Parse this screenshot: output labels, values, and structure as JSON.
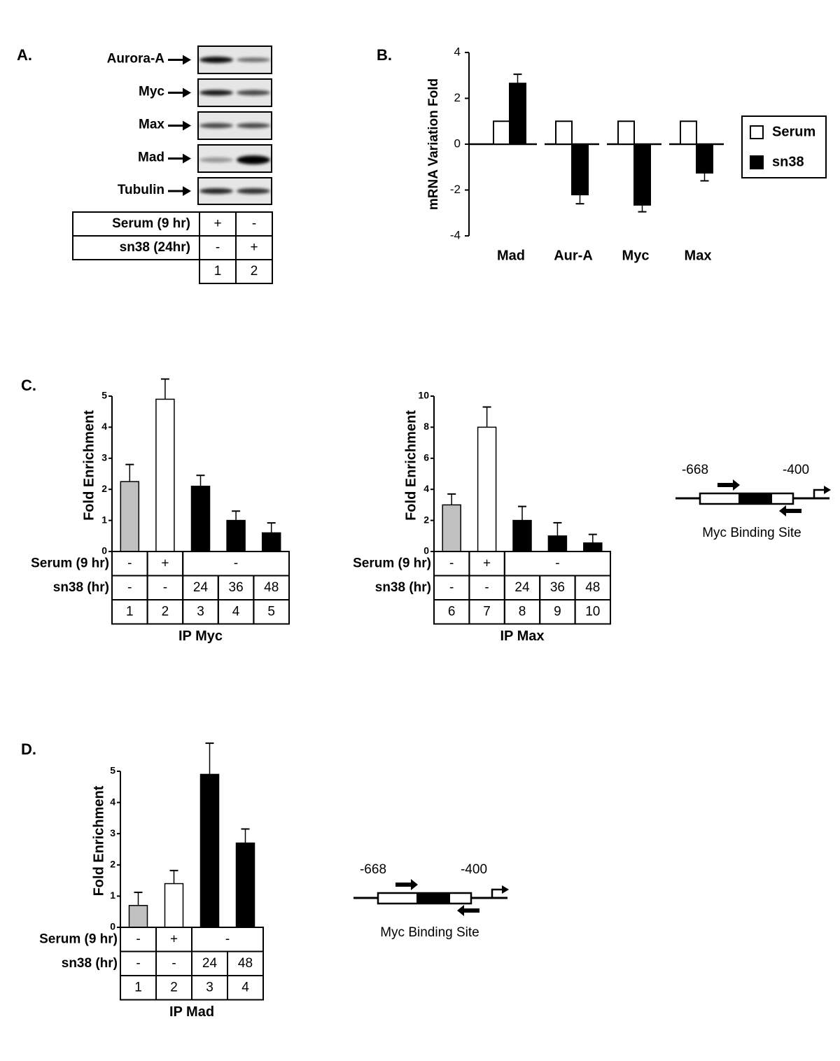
{
  "panel_labels": [
    "A.",
    "B.",
    "C.",
    "D."
  ],
  "blot": {
    "proteins": [
      "Aurora-A",
      "Myc",
      "Max",
      "Mad",
      "Tubulin"
    ],
    "table": {
      "rows": [
        {
          "label": "Serum (9 hr)",
          "cells": [
            "+",
            "-"
          ]
        },
        {
          "label": "sn38 (24hr)",
          "cells": [
            "-",
            "+"
          ]
        }
      ],
      "lanes": [
        "1",
        "2"
      ]
    }
  },
  "chart_data": [
    {
      "type": "bar",
      "ylabel": "mRNA Variation Fold",
      "categories": [
        "Mad",
        "Aur-A",
        "Myc",
        "Max"
      ],
      "series": [
        {
          "name": "Serum",
          "color": "#ffffff",
          "values": [
            1,
            1,
            1,
            1
          ]
        },
        {
          "name": "sn38",
          "color": "#000000",
          "values": [
            2.65,
            -2.2,
            -2.65,
            -1.25
          ],
          "errors": [
            0.4,
            0.4,
            0.3,
            0.35
          ]
        }
      ],
      "ylim": [
        -4,
        4
      ],
      "yticks": [
        -4,
        -2,
        0,
        2,
        4
      ],
      "legend": "right"
    },
    {
      "type": "bar",
      "ylabel": "Fold Enrichment",
      "values": [
        2.25,
        4.9,
        2.1,
        1.0,
        0.6
      ],
      "errors": [
        0.55,
        0.65,
        0.35,
        0.3,
        0.32
      ],
      "colors": [
        "#c0c0c0",
        "#ffffff",
        "#000000",
        "#000000",
        "#000000"
      ],
      "ylim": [
        0,
        5
      ],
      "yticks": [
        0,
        1,
        2,
        3,
        4,
        5
      ],
      "table": {
        "rows": [
          {
            "label": "Serum (9 hr)",
            "cells": [
              "-",
              "+",
              "-"
            ]
          },
          {
            "label": "sn38 (hr)",
            "cells": [
              "-",
              "-",
              "24",
              "36",
              "48"
            ]
          }
        ],
        "lanes": [
          "1",
          "2",
          "3",
          "4",
          "5"
        ]
      },
      "caption": "IP Myc"
    },
    {
      "type": "bar",
      "ylabel": "Fold Enrichment",
      "values": [
        3.0,
        8.0,
        2.0,
        1.0,
        0.55
      ],
      "errors": [
        0.7,
        1.3,
        0.9,
        0.85,
        0.55
      ],
      "colors": [
        "#c0c0c0",
        "#ffffff",
        "#000000",
        "#000000",
        "#000000"
      ],
      "ylim": [
        0,
        10
      ],
      "yticks": [
        0,
        2,
        4,
        6,
        8,
        10
      ],
      "table": {
        "rows": [
          {
            "label": "Serum (9 hr)",
            "cells": [
              "-",
              "+",
              "-"
            ]
          },
          {
            "label": "sn38 (hr)",
            "cells": [
              "-",
              "-",
              "24",
              "36",
              "48"
            ]
          }
        ],
        "lanes": [
          "6",
          "7",
          "8",
          "9",
          "10"
        ]
      },
      "caption": "IP Max"
    },
    {
      "type": "bar",
      "ylabel": "Fold Enrichment",
      "values": [
        0.7,
        1.4,
        4.9,
        2.7
      ],
      "errors": [
        0.42,
        0.42,
        1.0,
        0.45
      ],
      "colors": [
        "#c0c0c0",
        "#ffffff",
        "#000000",
        "#000000"
      ],
      "ylim": [
        0,
        5
      ],
      "yticks": [
        0,
        1,
        2,
        3,
        4,
        5
      ],
      "table": {
        "rows": [
          {
            "label": "Serum (9 hr)",
            "cells": [
              "-",
              "+",
              "-"
            ]
          },
          {
            "label": "sn38 (hr)",
            "cells": [
              "-",
              "-",
              "24",
              "48"
            ]
          }
        ],
        "lanes": [
          "1",
          "2",
          "3",
          "4"
        ]
      },
      "caption": "IP Mad"
    }
  ],
  "diagrams": [
    {
      "start": "-668",
      "end": "-400",
      "caption": "Myc Binding Site"
    },
    {
      "start": "-668",
      "end": "-400",
      "caption": "Myc Binding Site"
    }
  ]
}
